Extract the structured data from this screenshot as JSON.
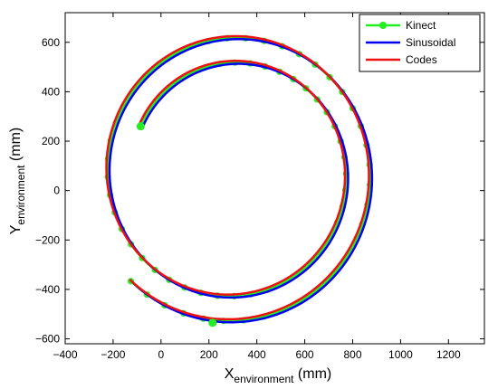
{
  "chart_data": {
    "type": "line",
    "xlabel": {
      "base": "X",
      "sub": "environment",
      "unit": " (mm)"
    },
    "ylabel": {
      "base": "Y",
      "sub": "environment",
      "unit": " (mm)"
    },
    "xlim": [
      -400,
      1350
    ],
    "ylim": [
      -620,
      720
    ],
    "xticks": [
      -400,
      -200,
      0,
      200,
      400,
      600,
      800,
      1000,
      1200
    ],
    "yticks": [
      -600,
      -400,
      -200,
      0,
      200,
      400,
      600
    ],
    "legend_position": "top-right",
    "grid": false,
    "spiral": {
      "center": [
        300,
        70
      ],
      "start_point": [
        -85,
        260
      ],
      "end_point": [
        215,
        -535
      ],
      "start_radius_mm": 430,
      "end_radius_mm": 610,
      "turns": 1.8
    },
    "series": [
      {
        "name": "Kinect",
        "color": "#22ee22",
        "marker": "circle",
        "line_width": 2.5,
        "offset": [
          0,
          0
        ]
      },
      {
        "name": "Sinusoidal",
        "color": "#0000ee",
        "marker": "none",
        "line_width": 2.5,
        "offset": [
          8,
          -5
        ]
      },
      {
        "name": "Codes",
        "color": "#ee1111",
        "marker": "none",
        "line_width": 2.5,
        "offset": [
          -5,
          7
        ]
      }
    ]
  }
}
